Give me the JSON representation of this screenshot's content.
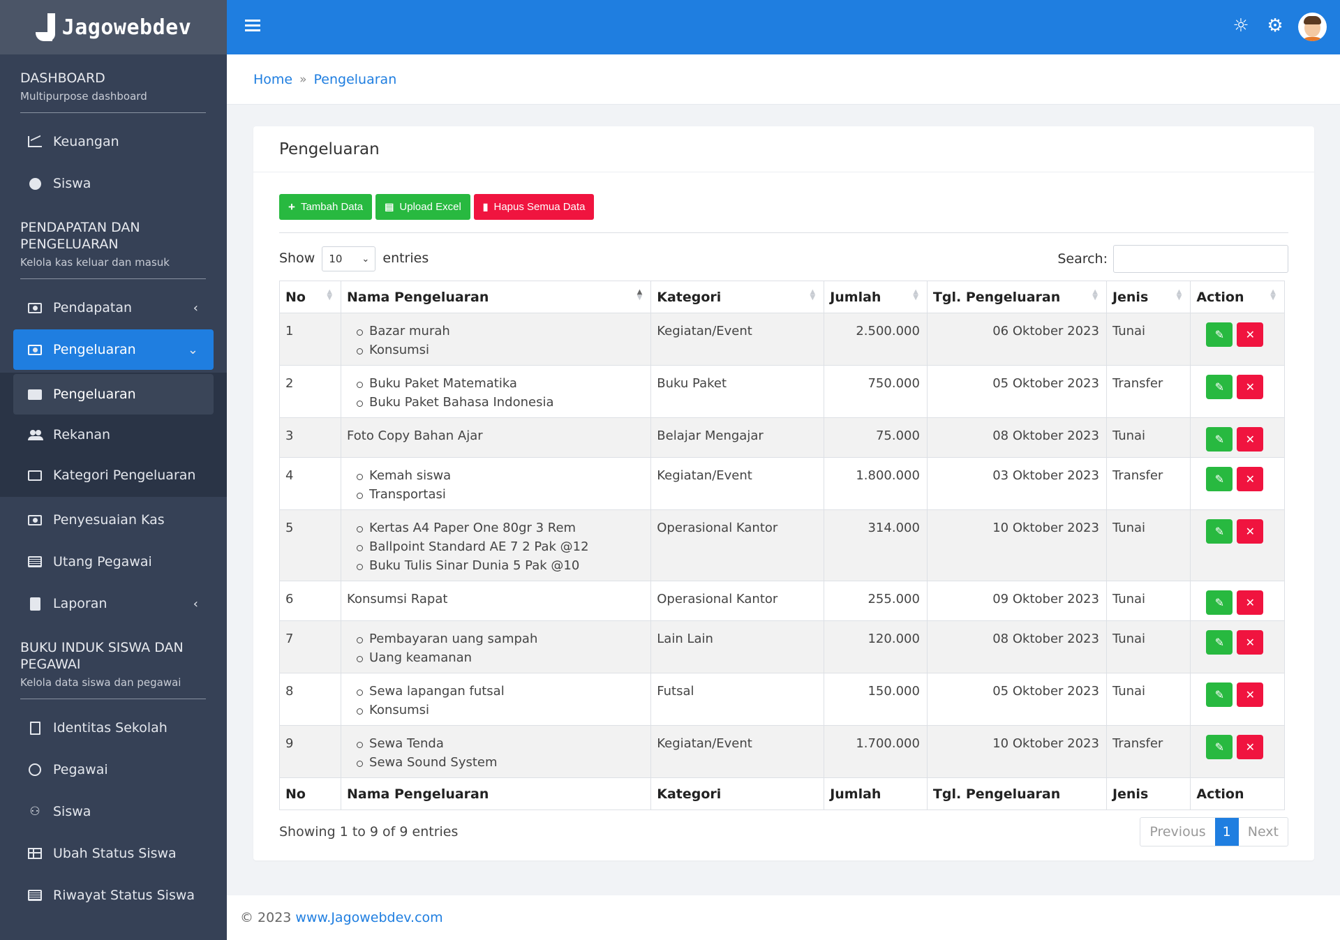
{
  "brand": {
    "name": "Jagowebdev"
  },
  "sidebar": {
    "sections": [
      {
        "title": "DASHBOARD",
        "subtitle": "Multipurpose dashboard"
      },
      {
        "title": "PENDAPATAN DAN PENGELUARAN",
        "subtitle": "Kelola kas keluar dan masuk"
      },
      {
        "title": "BUKU INDUK SISWA DAN PEGAWAI",
        "subtitle": "Kelola data siswa dan pegawai"
      }
    ],
    "items": {
      "keuangan": "Keuangan",
      "siswa_dash": "Siswa",
      "pendapatan": "Pendapatan",
      "pengeluaran": "Pengeluaran",
      "sub_pengeluaran": "Pengeluaran",
      "rekanan": "Rekanan",
      "kategori": "Kategori Pengeluaran",
      "penyesuaian": "Penyesuaian Kas",
      "utang": "Utang Pegawai",
      "laporan": "Laporan",
      "identitas": "Identitas Sekolah",
      "pegawai": "Pegawai",
      "siswa": "Siswa",
      "ubah_status": "Ubah Status Siswa",
      "riwayat": "Riwayat Status Siswa"
    }
  },
  "topbar": {
    "icons": [
      "sun-icon",
      "gear-icon",
      "avatar"
    ]
  },
  "breadcrumb": {
    "home": "Home",
    "current": "Pengeluaran"
  },
  "card": {
    "title": "Pengeluaran",
    "buttons": {
      "tambah": "Tambah Data",
      "upload": "Upload Excel",
      "hapus": "Hapus Semua Data"
    },
    "show_label": "Show",
    "show_value": "10",
    "entries_label": "entries",
    "search_label": "Search:"
  },
  "table": {
    "columns": [
      "No",
      "Nama Pengeluaran",
      "Kategori",
      "Jumlah",
      "Tgl. Pengeluaran",
      "Jenis",
      "Action"
    ],
    "rows": [
      {
        "no": "1",
        "items": [
          "Bazar murah",
          "Konsumsi"
        ],
        "kategori": "Kegiatan/Event",
        "jumlah": "2.500.000",
        "tgl": "06 Oktober 2023",
        "jenis": "Tunai"
      },
      {
        "no": "2",
        "items": [
          "Buku Paket Matematika",
          "Buku Paket Bahasa Indonesia"
        ],
        "kategori": "Buku Paket",
        "jumlah": "750.000",
        "tgl": "05 Oktober 2023",
        "jenis": "Transfer"
      },
      {
        "no": "3",
        "plain": "Foto Copy Bahan Ajar",
        "kategori": "Belajar Mengajar",
        "jumlah": "75.000",
        "tgl": "08 Oktober 2023",
        "jenis": "Tunai"
      },
      {
        "no": "4",
        "items": [
          "Kemah siswa",
          "Transportasi"
        ],
        "kategori": "Kegiatan/Event",
        "jumlah": "1.800.000",
        "tgl": "03 Oktober 2023",
        "jenis": "Transfer"
      },
      {
        "no": "5",
        "items": [
          "Kertas A4 Paper One 80gr 3 Rem",
          "Ballpoint Standard AE 7 2 Pak @12",
          "Buku Tulis Sinar Dunia 5 Pak @10"
        ],
        "kategori": "Operasional Kantor",
        "jumlah": "314.000",
        "tgl": "10 Oktober 2023",
        "jenis": "Tunai"
      },
      {
        "no": "6",
        "plain": "Konsumsi Rapat",
        "kategori": "Operasional Kantor",
        "jumlah": "255.000",
        "tgl": "09 Oktober 2023",
        "jenis": "Tunai"
      },
      {
        "no": "7",
        "items": [
          "Pembayaran uang sampah",
          "Uang keamanan"
        ],
        "kategori": "Lain Lain",
        "jumlah": "120.000",
        "tgl": "08 Oktober 2023",
        "jenis": "Tunai"
      },
      {
        "no": "8",
        "items": [
          "Sewa lapangan futsal",
          "Konsumsi"
        ],
        "kategori": "Futsal",
        "jumlah": "150.000",
        "tgl": "05 Oktober 2023",
        "jenis": "Tunai"
      },
      {
        "no": "9",
        "items": [
          "Sewa Tenda",
          "Sewa Sound System"
        ],
        "kategori": "Kegiatan/Event",
        "jumlah": "1.700.000",
        "tgl": "10 Oktober 2023",
        "jenis": "Transfer"
      }
    ]
  },
  "pagination": {
    "info": "Showing 1 to 9 of 9 entries",
    "previous": "Previous",
    "current": "1",
    "next": "Next"
  },
  "footer": {
    "copyright": "© 2023",
    "link": "www.Jagowebdev.com"
  },
  "colors": {
    "primary": "#1f7ee0",
    "sidebar": "#364156",
    "success": "#28b940",
    "danger": "#f0143f"
  }
}
